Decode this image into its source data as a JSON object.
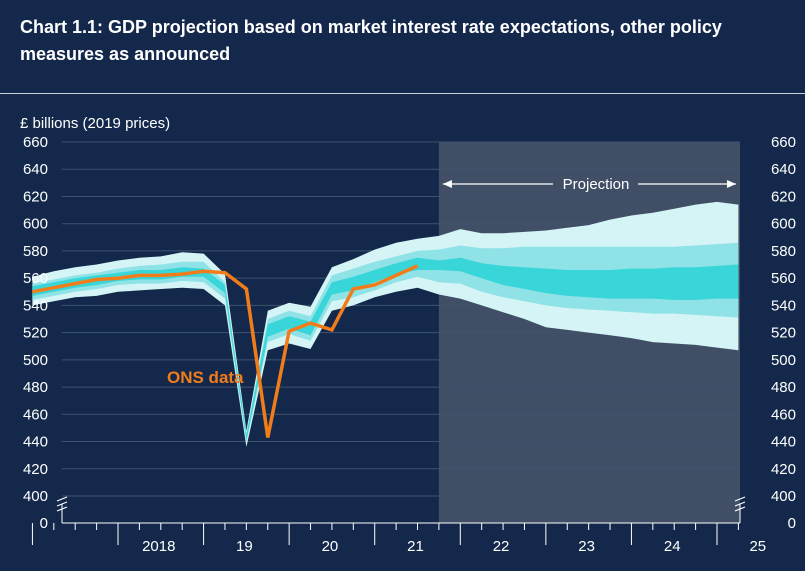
{
  "title": "Chart 1.1: GDP projection based on market interest rate expectations, other policy measures as announced",
  "colors": {
    "background": "#13284a",
    "projection_shade": "#414f66",
    "gridline": "#3f5370",
    "fan_outer": "#d4f4f6",
    "fan_middle": "#8fe2e6",
    "fan_inner": "#38d5d9",
    "ons_line": "#f07d1a",
    "axis": "#ffffff"
  },
  "chart_data": {
    "type": "line",
    "title": "Chart 1.1: GDP projection based on market interest rate expectations, other policy measures as announced",
    "ylabel": "£ billions (2019 prices)",
    "ylim": [
      400,
      660
    ],
    "y_ticks": [
      "660",
      "640",
      "620",
      "600",
      "580",
      "560",
      "540",
      "520",
      "500",
      "480",
      "460",
      "440",
      "420",
      "400",
      "0"
    ],
    "y_axis_break": true,
    "x_ticks": [
      "2018",
      "19",
      "20",
      "21",
      "22",
      "23",
      "24",
      "25"
    ],
    "x_tick_years": [
      2018,
      2019,
      2020,
      2021,
      2022,
      2023,
      2024,
      2025
    ],
    "grid": true,
    "projection_label": "Projection",
    "projection_start": 2021.75,
    "annotation": "ONS data",
    "series": [
      {
        "name": "ONS data",
        "x": [
          2017.0,
          2017.25,
          2017.5,
          2017.75,
          2018.0,
          2018.25,
          2018.5,
          2018.75,
          2019.0,
          2019.25,
          2019.5,
          2019.75,
          2020.0,
          2020.25,
          2020.5,
          2020.75,
          2021.0,
          2021.25,
          2021.5
        ],
        "values": [
          550,
          553,
          556,
          559,
          560,
          562,
          562,
          563,
          565,
          564,
          552,
          443,
          521,
          527,
          522,
          552,
          555,
          562,
          569
        ]
      }
    ],
    "fan_chart": {
      "x": [
        2017.0,
        2017.25,
        2017.5,
        2017.75,
        2018.0,
        2018.25,
        2018.5,
        2018.75,
        2019.0,
        2019.25,
        2019.5,
        2019.75,
        2020.0,
        2020.25,
        2020.5,
        2020.75,
        2021.0,
        2021.25,
        2021.5,
        2021.75,
        2022.0,
        2022.25,
        2022.5,
        2022.75,
        2023.0,
        2023.25,
        2023.5,
        2023.75,
        2024.0,
        2024.25,
        2024.5,
        2024.75,
        2025.0,
        2025.25
      ],
      "outer_upper": [
        561,
        565,
        568,
        570,
        573,
        575,
        576,
        579,
        578,
        563,
        448,
        536,
        542,
        539,
        568,
        574,
        581,
        586,
        589,
        591,
        596,
        593,
        593,
        594,
        595,
        597,
        599,
        603,
        606,
        608,
        611,
        614,
        616,
        614
      ],
      "middle_upper": [
        556,
        559,
        562,
        564,
        567,
        569,
        570,
        572,
        572,
        557,
        446,
        530,
        536,
        532,
        562,
        567,
        572,
        576,
        580,
        581,
        584,
        582,
        582,
        583,
        583,
        583,
        583,
        583,
        583,
        583,
        583,
        584,
        585,
        586
      ],
      "inner_upper": [
        554,
        557,
        560,
        562,
        564,
        566,
        566,
        568,
        567,
        555,
        445,
        526,
        532,
        528,
        557,
        561,
        566,
        571,
        575,
        573,
        575,
        571,
        569,
        568,
        567,
        566,
        566,
        566,
        567,
        567,
        568,
        568,
        569,
        570
      ],
      "inner_lower": [
        547,
        550,
        553,
        555,
        558,
        559,
        559,
        561,
        561,
        549,
        441,
        517,
        523,
        518,
        548,
        551,
        557,
        563,
        566,
        566,
        565,
        560,
        555,
        552,
        549,
        547,
        546,
        545,
        545,
        545,
        544,
        544,
        545,
        545
      ],
      "middle_lower": [
        544,
        547,
        550,
        552,
        555,
        556,
        556,
        558,
        557,
        545,
        439,
        513,
        519,
        514,
        543,
        546,
        551,
        557,
        561,
        557,
        556,
        550,
        546,
        543,
        540,
        538,
        537,
        536,
        535,
        534,
        534,
        533,
        532,
        531
      ],
      "outer_lower": [
        540,
        543,
        546,
        547,
        550,
        551,
        552,
        553,
        552,
        540,
        436,
        507,
        512,
        508,
        536,
        540,
        546,
        550,
        553,
        548,
        545,
        540,
        535,
        530,
        524,
        522,
        520,
        518,
        516,
        513,
        512,
        511,
        509,
        507
      ]
    }
  }
}
